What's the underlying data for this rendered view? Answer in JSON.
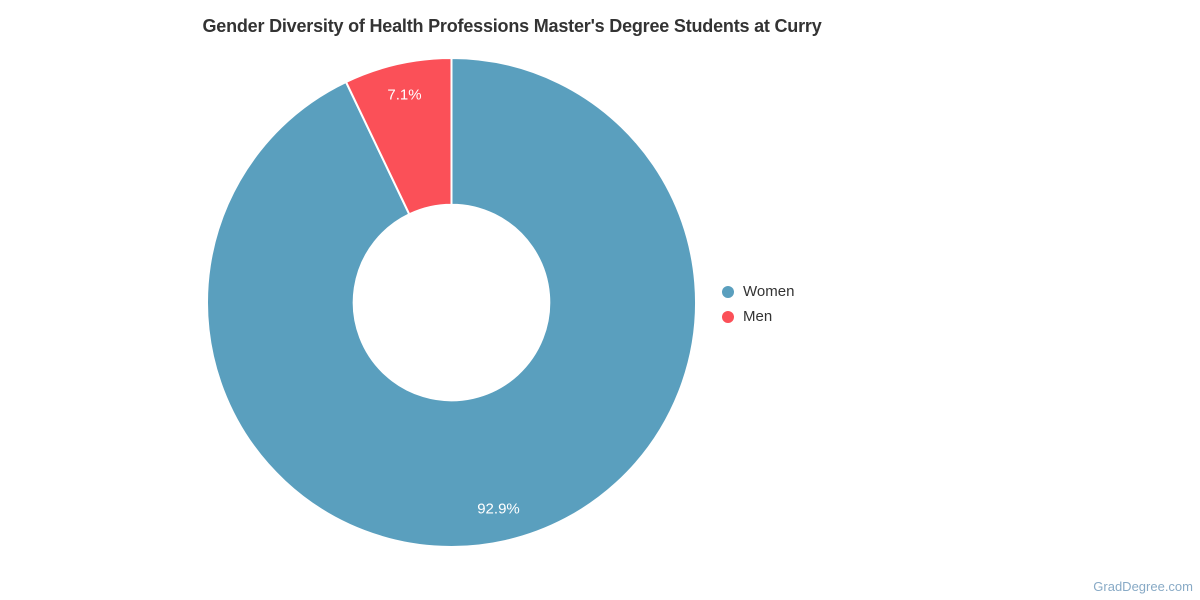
{
  "title": "Gender Diversity of Health Professions Master's Degree Students at Curry",
  "watermark": "GradDegree.com",
  "chart_data": {
    "type": "pie",
    "subtype": "donut",
    "title": "Gender Diversity of Health Professions Master's Degree Students at Curry",
    "units": "percent",
    "total": 100,
    "start_angle_deg": 0,
    "direction": "clockwise",
    "inner_radius_ratio": 0.4,
    "legend_position": "right",
    "grid": false,
    "slice_border_color": "#FFFFFF",
    "data_label_color": "#FFFFFF",
    "series": [
      {
        "name": "Women",
        "value": 92.9,
        "label": "92.9%",
        "color": "#5A9FBE"
      },
      {
        "name": "Men",
        "value": 7.1,
        "label": "7.1%",
        "color": "#FB5058"
      }
    ]
  },
  "colors": {
    "background": "#FFFFFF",
    "title_text": "#333333",
    "legend_text": "#333333",
    "watermark_text": "#88AAC6"
  }
}
